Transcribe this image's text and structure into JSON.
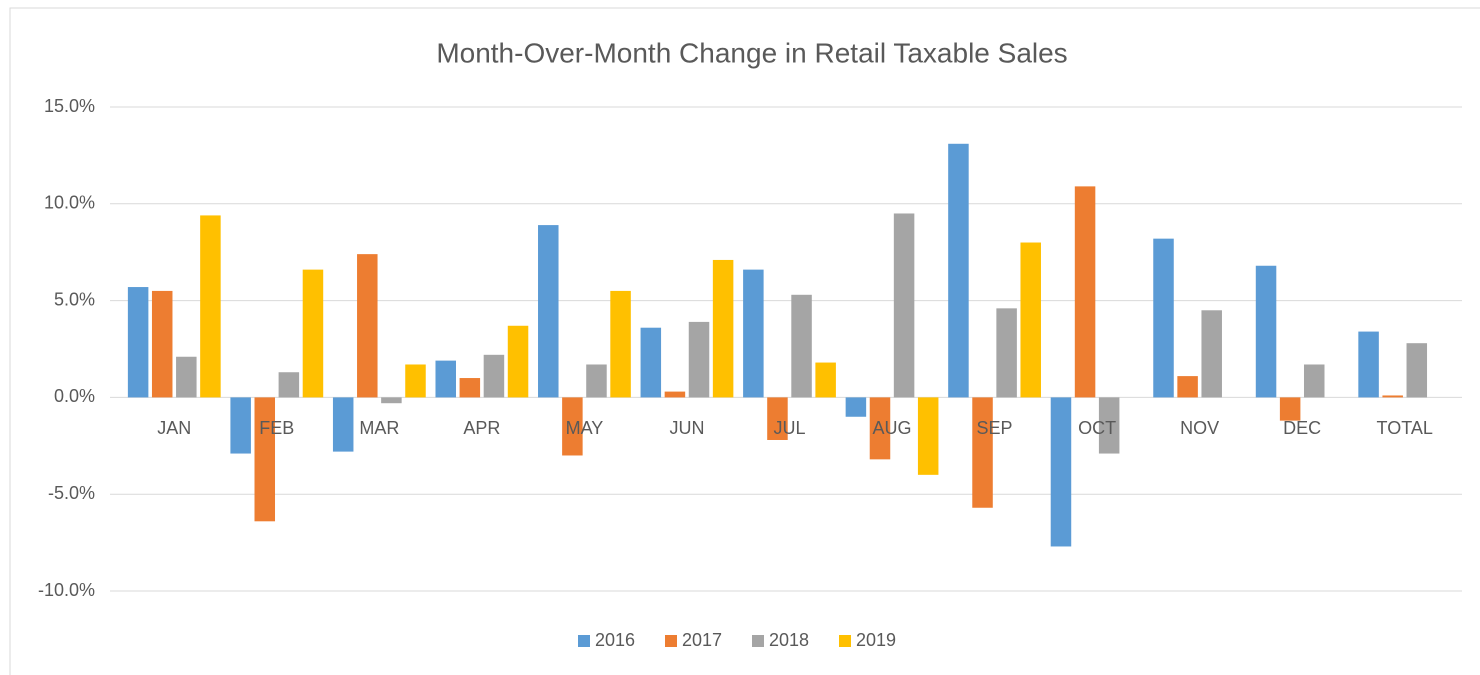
{
  "chart_data": {
    "type": "bar",
    "title": "Month-Over-Month Change in Retail Taxable Sales",
    "categories": [
      "JAN",
      "FEB",
      "MAR",
      "APR",
      "MAY",
      "JUN",
      "JUL",
      "AUG",
      "SEP",
      "OCT",
      "NOV",
      "DEC",
      "TOTAL"
    ],
    "series": [
      {
        "name": "2016",
        "color": "#5b9bd5",
        "values": [
          5.7,
          -2.9,
          -2.8,
          1.9,
          8.9,
          3.6,
          6.6,
          -1.0,
          13.1,
          -7.7,
          8.2,
          6.8,
          3.4
        ]
      },
      {
        "name": "2017",
        "color": "#ed7d31",
        "values": [
          5.5,
          -6.4,
          7.4,
          1.0,
          -3.0,
          0.3,
          -2.2,
          -3.2,
          -5.7,
          10.9,
          1.1,
          -1.2,
          0.1
        ]
      },
      {
        "name": "2018",
        "color": "#a5a5a5",
        "values": [
          2.1,
          1.3,
          -0.3,
          2.2,
          1.7,
          3.9,
          5.3,
          9.5,
          4.6,
          -2.9,
          4.5,
          1.7,
          2.8
        ]
      },
      {
        "name": "2019",
        "color": "#ffc000",
        "values": [
          9.4,
          6.6,
          1.7,
          3.7,
          5.5,
          7.1,
          1.8,
          -4.0,
          8.0,
          null,
          null,
          null,
          null
        ]
      }
    ],
    "ylim": [
      -10,
      15
    ],
    "yticks": [
      {
        "value": 15,
        "label": "15.0%"
      },
      {
        "value": 10,
        "label": "10.0%"
      },
      {
        "value": 5,
        "label": "5.0%"
      },
      {
        "value": 0,
        "label": "0.0%"
      },
      {
        "value": -5,
        "label": "-5.0%"
      },
      {
        "value": -10,
        "label": "-10.0%"
      }
    ],
    "grid": true,
    "legend": "bottom"
  }
}
